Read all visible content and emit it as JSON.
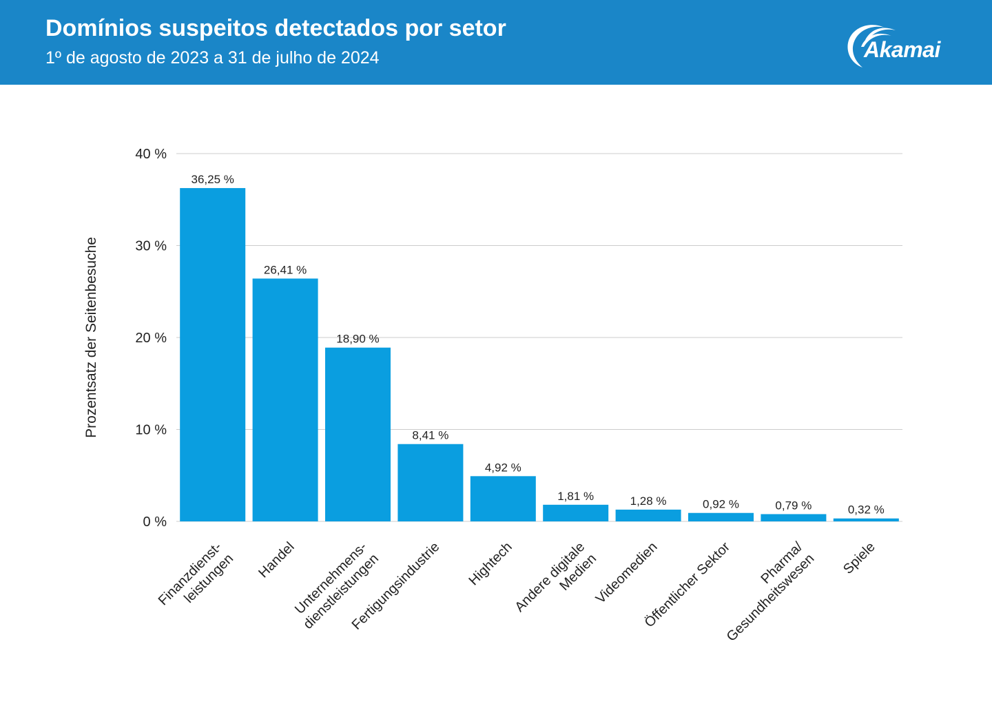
{
  "header": {
    "title": "Domínios suspeitos detectados por setor",
    "subtitle": "1º de agosto de 2023 a 31 de julho de 2024",
    "logo_text": "Akamai",
    "background_color": "#1a86c8"
  },
  "chart_data": {
    "type": "bar",
    "categories": [
      [
        "Finanzdienst-",
        "leistungen"
      ],
      [
        "Handel"
      ],
      [
        "Unternehmens-",
        "dienstleistungen"
      ],
      [
        "Fertigungsindustrie"
      ],
      [
        "Hightech"
      ],
      [
        "Andere digitale",
        "Medien"
      ],
      [
        "Videomedien"
      ],
      [
        "Öffentlicher Sektor"
      ],
      [
        "Pharma/",
        "Gesundheitswesen"
      ],
      [
        "Spiele"
      ]
    ],
    "values": [
      36.25,
      26.41,
      18.9,
      8.41,
      4.92,
      1.81,
      1.28,
      0.92,
      0.79,
      0.32
    ],
    "value_labels": [
      "36,25 %",
      "26,41 %",
      "18,90 %",
      "8,41 %",
      "4,92 %",
      "1,81 %",
      "1,28 %",
      "0,92 %",
      "0,79 %",
      "0,32 %"
    ],
    "ylabel": "Prozentsatz der Seitenbesuche",
    "ylim": [
      0,
      40
    ],
    "yticks": [
      0,
      10,
      20,
      30,
      40
    ],
    "ytick_labels": [
      "0 %",
      "10 %",
      "20 %",
      "30 %",
      "40 %"
    ],
    "grid": true,
    "bar_color": "#0a9ee0",
    "grid_color": "#cccccc"
  }
}
